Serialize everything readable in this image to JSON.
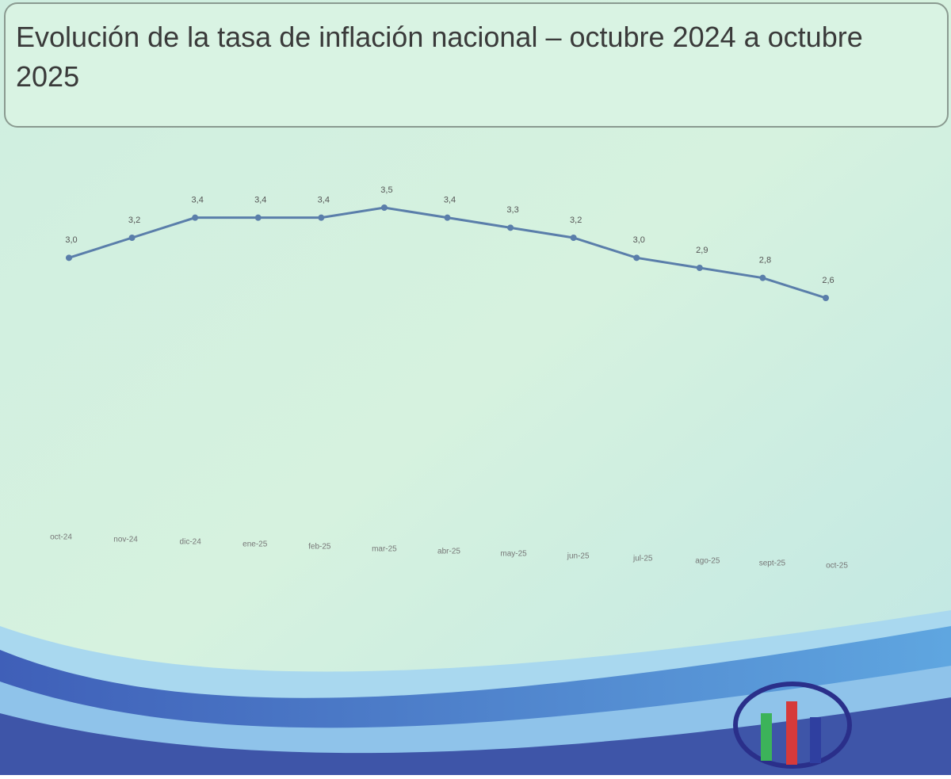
{
  "chart_data": {
    "type": "line",
    "title": "Evolución de la tasa de inflación nacional – octubre 2024 a octubre 2025",
    "categories": [
      "oct-24",
      "nov-24",
      "dic-24",
      "ene-25",
      "feb-25",
      "mar-25",
      "abr-25",
      "may-25",
      "jun-25",
      "jul-25",
      "ago-25",
      "sept-25",
      "oct-25"
    ],
    "values": [
      3.0,
      3.2,
      3.4,
      3.4,
      3.4,
      3.5,
      3.4,
      3.3,
      3.2,
      3.0,
      2.9,
      2.8,
      2.6
    ],
    "value_labels": [
      "3,0",
      "3,2",
      "3,4",
      "3,4",
      "3,4",
      "3,5",
      "3,4",
      "3,3",
      "3,2",
      "3,0",
      "2,9",
      "2,8",
      "2,6"
    ],
    "color": "#5a7eaa"
  }
}
